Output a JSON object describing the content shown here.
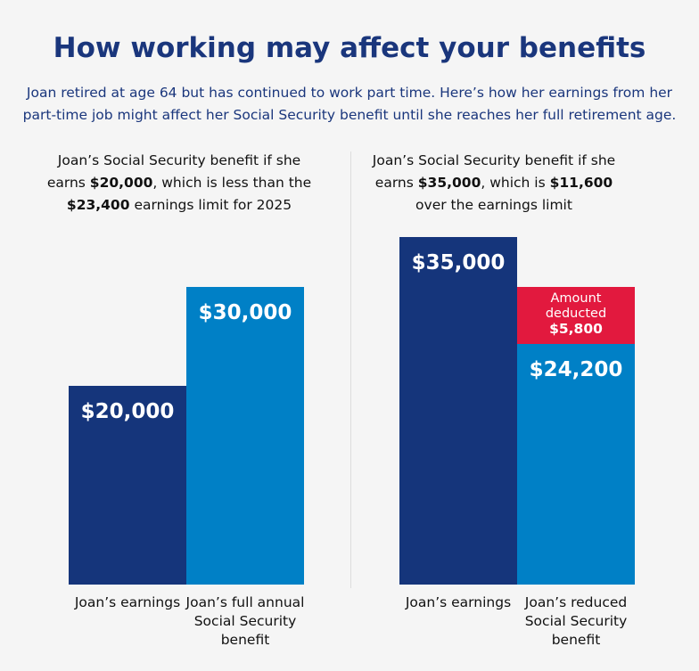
{
  "title": "How working may affect your benefits",
  "intro": "Joan retired at age 64 but has continued to work part time. Here’s how her earnings from her part-time job might affect her Social Security benefit until she reaches her full retirement age.",
  "colors": {
    "earnings": "#15357b",
    "benefit": "#0080c6",
    "deducted": "#e2193e",
    "title": "#1a367c"
  },
  "chart_data": [
    {
      "type": "bar",
      "title_parts": [
        {
          "t": "Joan’s Social Security benefit if she earns "
        },
        {
          "t": "$20,000",
          "b": true
        },
        {
          "t": ", which is less than the "
        },
        {
          "t": "$23,400",
          "b": true
        },
        {
          "t": " earnings limit for 2025"
        }
      ],
      "categories": [
        "Joan’s earnings",
        "Joan’s full annual Social Security benefit"
      ],
      "values": [
        20000,
        30000
      ],
      "labels": [
        "$20,000",
        "$30,000"
      ]
    },
    {
      "type": "bar",
      "title_parts": [
        {
          "t": "Joan’s Social Security benefit if she earns "
        },
        {
          "t": "$35,000",
          "b": true
        },
        {
          "t": ", which is "
        },
        {
          "t": "$11,600",
          "b": true
        },
        {
          "t": " over the earnings limit"
        }
      ],
      "categories": [
        "Joan’s earnings",
        "Joan’s reduced Social Security benefit"
      ],
      "values": [
        35000,
        24200
      ],
      "labels": [
        "$35,000",
        "$24,200"
      ],
      "deduction": {
        "value": 5800,
        "label_line1": "Amount",
        "label_line2": "deducted",
        "amount": "$5,800"
      }
    }
  ]
}
